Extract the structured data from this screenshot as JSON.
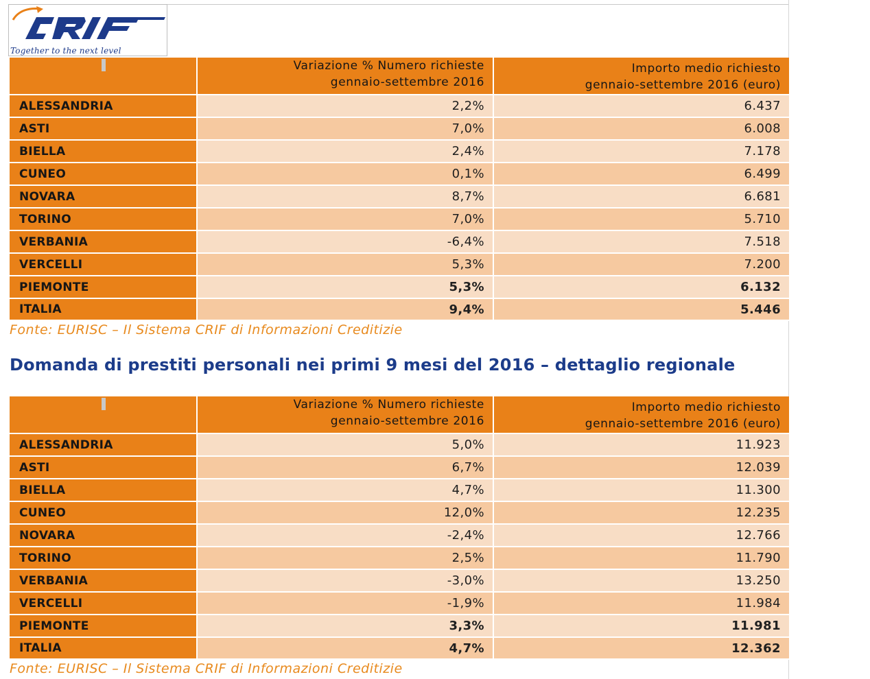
{
  "logo": {
    "brand": "CRIF",
    "tagline": "Together to the next level",
    "colors": {
      "blue": "#1d3a8a",
      "orange": "#e98118"
    }
  },
  "source_note": "Fonte: EURISC – Il Sistema CRIF di Informazioni Creditizie",
  "section2_title": "Domanda di prestiti personali nei primi 9 mesi del 2016 – dettaglio regionale",
  "colors": {
    "header_orange": "#e98118",
    "row_light": "#f8ddc5",
    "row_dark": "#f6c9a0",
    "title_blue": "#1c3c8a",
    "source_orange": "#e88a1e"
  },
  "table1": {
    "headers": {
      "col1_line1": "Variazione % Numero richieste",
      "col1_line2": "gennaio-settembre 2016",
      "col2_line1": "Importo medio richiesto",
      "col2_line2": "gennaio-settembre 2016 (euro)"
    },
    "rows": [
      {
        "name": "ALESSANDRIA",
        "variazione": "2,2%",
        "importo": "6.437"
      },
      {
        "name": "ASTI",
        "variazione": "7,0%",
        "importo": "6.008"
      },
      {
        "name": "BIELLA",
        "variazione": "2,4%",
        "importo": "7.178"
      },
      {
        "name": "CUNEO",
        "variazione": "0,1%",
        "importo": "6.499"
      },
      {
        "name": "NOVARA",
        "variazione": "8,7%",
        "importo": "6.681"
      },
      {
        "name": "TORINO",
        "variazione": "7,0%",
        "importo": "5.710"
      },
      {
        "name": "VERBANIA",
        "variazione": "-6,4%",
        "importo": "7.518"
      },
      {
        "name": "VERCELLI",
        "variazione": "5,3%",
        "importo": "7.200"
      },
      {
        "name": "PIEMONTE",
        "variazione": "5,3%",
        "importo": "6.132"
      },
      {
        "name": "ITALIA",
        "variazione": "9,4%",
        "importo": "5.446"
      }
    ]
  },
  "table2": {
    "headers": {
      "col1_line1": "Variazione % Numero richieste",
      "col1_line2": "gennaio-settembre 2016",
      "col2_line1": "Importo medio richiesto",
      "col2_line2": "gennaio-settembre 2016 (euro)"
    },
    "rows": [
      {
        "name": "ALESSANDRIA",
        "variazione": "5,0%",
        "importo": "11.923"
      },
      {
        "name": "ASTI",
        "variazione": "6,7%",
        "importo": "12.039"
      },
      {
        "name": "BIELLA",
        "variazione": "4,7%",
        "importo": "11.300"
      },
      {
        "name": "CUNEO",
        "variazione": "12,0%",
        "importo": "12.235"
      },
      {
        "name": "NOVARA",
        "variazione": "-2,4%",
        "importo": "12.766"
      },
      {
        "name": "TORINO",
        "variazione": "2,5%",
        "importo": "11.790"
      },
      {
        "name": "VERBANIA",
        "variazione": "-3,0%",
        "importo": "13.250"
      },
      {
        "name": "VERCELLI",
        "variazione": "-1,9%",
        "importo": "11.984"
      },
      {
        "name": "PIEMONTE",
        "variazione": "3,3%",
        "importo": "11.981"
      },
      {
        "name": "ITALIA",
        "variazione": "4,7%",
        "importo": "12.362"
      }
    ]
  }
}
